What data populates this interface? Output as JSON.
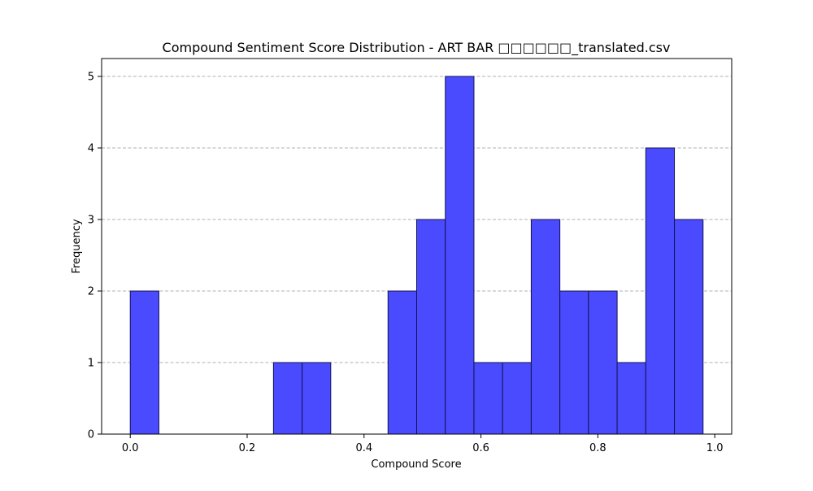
{
  "chart_data": {
    "type": "bar",
    "title": "Compound Sentiment Score Distribution - ART BAR □□□□□□_translated.csv",
    "xlabel": "Compound Score",
    "ylabel": "Frequency",
    "xlim": [
      -0.049,
      1.029
    ],
    "ylim": [
      0,
      5.25
    ],
    "x_ticks": [
      "0.0",
      "0.2",
      "0.4",
      "0.6",
      "0.8",
      "1.0"
    ],
    "y_ticks": [
      "0",
      "1",
      "2",
      "3",
      "4",
      "5"
    ],
    "grid": "y-dashed",
    "bin_edges": [
      0.0,
      0.049,
      0.098,
      0.147,
      0.196,
      0.245,
      0.294,
      0.343,
      0.392,
      0.441,
      0.49,
      0.539,
      0.588,
      0.637,
      0.686,
      0.735,
      0.784,
      0.833,
      0.882,
      0.931,
      0.98
    ],
    "values": [
      2,
      0,
      0,
      0,
      0,
      1,
      1,
      0,
      0,
      2,
      3,
      5,
      1,
      1,
      3,
      2,
      2,
      1,
      4,
      3
    ],
    "bar_color": "#4a4aff",
    "edge_color": "#141450",
    "grid_color": "#b0b0b0"
  }
}
